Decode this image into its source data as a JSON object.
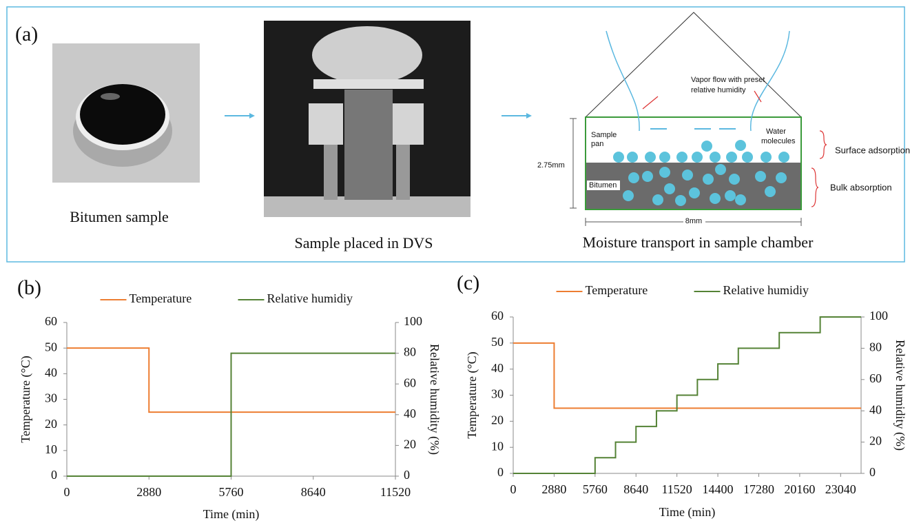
{
  "panel_a": {
    "label": "(a)",
    "captions": [
      "Bitumen sample",
      "Sample placed in DVS",
      "Moisture transport in sample chamber"
    ],
    "diagram": {
      "vapor_flow": [
        "Vapor flow with preset",
        "relative humidity"
      ],
      "sample_pan": [
        "Sample",
        "pan"
      ],
      "water_molecules": [
        "Water",
        "molecules"
      ],
      "surface": "Surface adsorption",
      "bulk": "Bulk absorption",
      "bitumen": "Bitumen",
      "height": "2.75mm",
      "width": "8mm"
    }
  },
  "chart_data": [
    {
      "type": "line",
      "label": "(b)",
      "x_label": "Time (min)",
      "y_label": "Temperature (°C)",
      "y2_label": "Relative humidity (%)",
      "xlim": [
        0,
        11520
      ],
      "xticks": [
        0,
        2880,
        5760,
        8640,
        11520
      ],
      "ylim": [
        0,
        60
      ],
      "yticks": [
        0,
        10,
        20,
        30,
        40,
        50,
        60
      ],
      "y2lim": [
        0,
        100
      ],
      "y2ticks": [
        0,
        20,
        40,
        60,
        80,
        100
      ],
      "series": [
        {
          "name": "Temperature",
          "color": "#ed7d31",
          "x": [
            0,
            2880,
            2880,
            11520
          ],
          "values": [
            50,
            50,
            25,
            25
          ]
        },
        {
          "name": "Relative humidiy",
          "color": "#548235",
          "axis": "y2",
          "x": [
            0,
            5760,
            5760,
            11520
          ],
          "values": [
            0,
            0,
            80,
            80
          ]
        }
      ]
    },
    {
      "type": "line",
      "label": "(c)",
      "x_label": "Time (min)",
      "y_label": "Temperature (°C)",
      "y2_label": "Relative humidity (%)",
      "xlim": [
        0,
        24480
      ],
      "xticks": [
        0,
        2880,
        5760,
        8640,
        11520,
        14400,
        17280,
        20160,
        23040
      ],
      "ylim": [
        0,
        60
      ],
      "yticks": [
        0,
        10,
        20,
        30,
        40,
        50,
        60
      ],
      "y2lim": [
        0,
        100
      ],
      "y2ticks": [
        0,
        20,
        40,
        60,
        80,
        100
      ],
      "series": [
        {
          "name": "Temperature",
          "color": "#ed7d31",
          "x": [
            0,
            2880,
            2880,
            24480
          ],
          "values": [
            50,
            50,
            25,
            25
          ]
        },
        {
          "name": "Relative humidiy",
          "color": "#548235",
          "axis": "y2",
          "x": [
            0,
            5760,
            5760,
            7200,
            7200,
            8640,
            8640,
            10080,
            10080,
            11520,
            11520,
            12960,
            12960,
            14400,
            14400,
            15840,
            15840,
            18720,
            18720,
            21600,
            21600,
            24480
          ],
          "values": [
            0,
            0,
            10,
            10,
            20,
            20,
            30,
            30,
            40,
            40,
            50,
            50,
            60,
            60,
            70,
            70,
            80,
            80,
            90,
            90,
            100,
            100
          ]
        }
      ]
    }
  ]
}
